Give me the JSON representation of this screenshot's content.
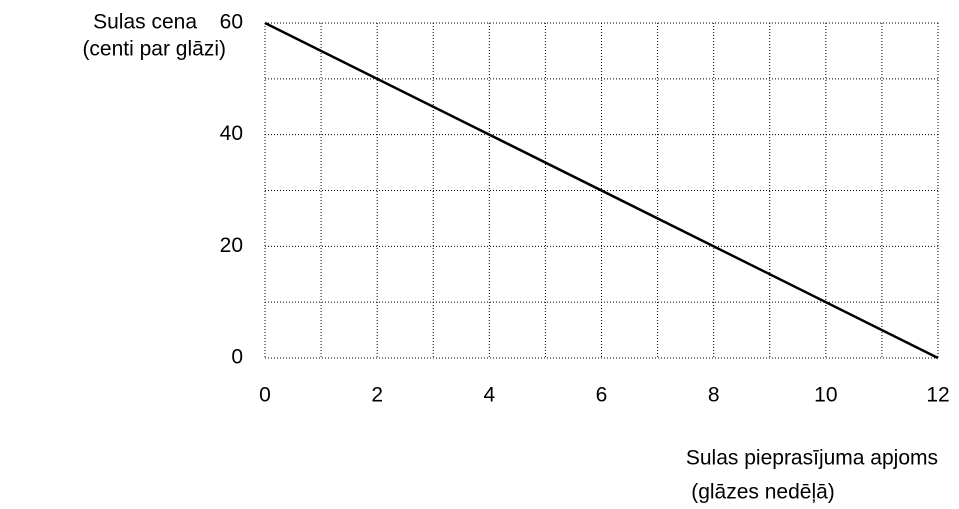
{
  "chart_data": {
    "type": "line",
    "ylabel": [
      "Sulas cena",
      "(centi par glāzi)"
    ],
    "xlabel": [
      "Sulas pieprasījuma apjoms",
      "(glāzes nedēļā)"
    ],
    "x": [
      0,
      12
    ],
    "values": [
      60,
      0
    ],
    "color": "#000000",
    "xlim": [
      0,
      12
    ],
    "ylim": [
      0,
      60
    ],
    "xticks": [
      0,
      2,
      4,
      6,
      8,
      10,
      12
    ],
    "yticks": [
      0,
      20,
      40,
      60
    ],
    "grid": true,
    "xgrid": [
      0,
      1,
      2,
      3,
      4,
      5,
      6,
      7,
      8,
      9,
      10,
      11,
      12
    ],
    "ygrid": [
      0,
      10,
      20,
      30,
      40,
      50,
      60
    ]
  }
}
